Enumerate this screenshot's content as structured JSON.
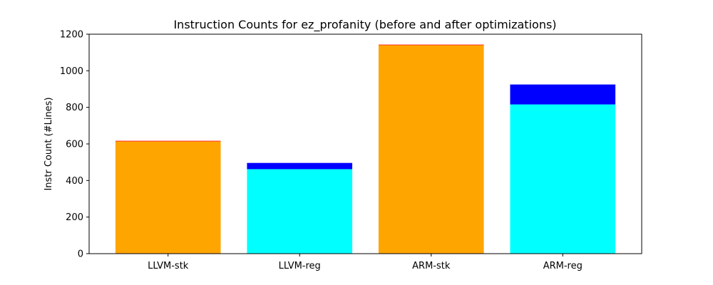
{
  "chart_data": {
    "type": "bar",
    "stacked": true,
    "title": "Instruction Counts for ez_profanity (before and after optimizations)",
    "xlabel": "",
    "ylabel": "Instr Count (#Lines)",
    "ylim": [
      0,
      1200
    ],
    "yticks": [
      "0",
      "200",
      "400",
      "600",
      "800",
      "1000",
      "1200"
    ],
    "categories": [
      "LLVM-stk",
      "LLVM-reg",
      "ARM-stk",
      "ARM-reg"
    ],
    "bars": [
      {
        "category": "LLVM-stk",
        "segments": [
          {
            "value": 614,
            "color": "#ffa500"
          },
          {
            "value": 3,
            "color": "#ff0000"
          }
        ]
      },
      {
        "category": "LLVM-reg",
        "segments": [
          {
            "value": 462,
            "color": "#00ffff"
          },
          {
            "value": 34,
            "color": "#0000ff"
          }
        ]
      },
      {
        "category": "ARM-stk",
        "segments": [
          {
            "value": 1140,
            "color": "#ffa500"
          },
          {
            "value": 3,
            "color": "#ff0000"
          }
        ]
      },
      {
        "category": "ARM-reg",
        "segments": [
          {
            "value": 816,
            "color": "#00ffff"
          },
          {
            "value": 109,
            "color": "#0000ff"
          }
        ]
      }
    ],
    "grid": false,
    "legend": "none"
  }
}
